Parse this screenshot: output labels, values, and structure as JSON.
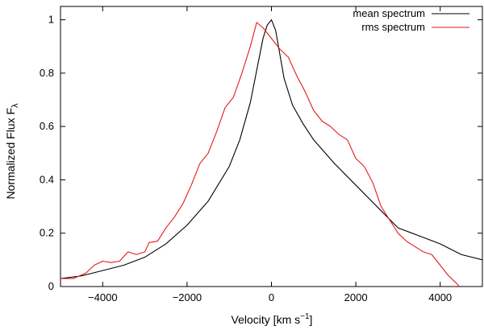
{
  "chart_data": {
    "type": "line",
    "xlabel": "Velocity [km s",
    "xlabel_sup": "−1",
    "xlabel_end": "]",
    "ylabel": "Normalized Flux F",
    "ylabel_sub": "λ",
    "xlim": [
      -5000,
      5000
    ],
    "ylim": [
      0,
      1.05
    ],
    "xticks": [
      {
        "value": -4000,
        "label": "−4000"
      },
      {
        "value": -2000,
        "label": "−2000"
      },
      {
        "value": 0,
        "label": "0"
      },
      {
        "value": 2000,
        "label": "2000"
      },
      {
        "value": 4000,
        "label": "4000"
      }
    ],
    "yticks": [
      {
        "value": 0,
        "label": "0"
      },
      {
        "value": 0.2,
        "label": "0.2"
      },
      {
        "value": 0.4,
        "label": "0.4"
      },
      {
        "value": 0.6,
        "label": "0.6"
      },
      {
        "value": 0.8,
        "label": "0.8"
      },
      {
        "value": 1,
        "label": "1"
      }
    ],
    "grid": false,
    "legend_position": "top-right",
    "series": [
      {
        "name": "mean spectrum",
        "color": "#000000",
        "points": [
          [
            -5000,
            0.03
          ],
          [
            -4500,
            0.04
          ],
          [
            -4000,
            0.06
          ],
          [
            -3500,
            0.08
          ],
          [
            -3000,
            0.11
          ],
          [
            -2500,
            0.16
          ],
          [
            -2000,
            0.23
          ],
          [
            -1500,
            0.32
          ],
          [
            -1000,
            0.45
          ],
          [
            -750,
            0.55
          ],
          [
            -500,
            0.69
          ],
          [
            -300,
            0.85
          ],
          [
            -200,
            0.93
          ],
          [
            -100,
            0.98
          ],
          [
            0,
            1.0
          ],
          [
            100,
            0.96
          ],
          [
            200,
            0.87
          ],
          [
            300,
            0.78
          ],
          [
            500,
            0.68
          ],
          [
            750,
            0.61
          ],
          [
            1000,
            0.55
          ],
          [
            1500,
            0.46
          ],
          [
            2000,
            0.38
          ],
          [
            2500,
            0.3
          ],
          [
            3000,
            0.22
          ],
          [
            3500,
            0.19
          ],
          [
            4000,
            0.16
          ],
          [
            4500,
            0.12
          ],
          [
            5000,
            0.1
          ]
        ]
      },
      {
        "name": "rms spectrum",
        "color": "#e31a1c",
        "points": [
          [
            -5000,
            0.03
          ],
          [
            -4700,
            0.03
          ],
          [
            -4400,
            0.05
          ],
          [
            -4200,
            0.08
          ],
          [
            -4000,
            0.095
          ],
          [
            -3800,
            0.09
          ],
          [
            -3600,
            0.095
          ],
          [
            -3400,
            0.13
          ],
          [
            -3200,
            0.12
          ],
          [
            -3000,
            0.13
          ],
          [
            -2900,
            0.165
          ],
          [
            -2700,
            0.17
          ],
          [
            -2500,
            0.22
          ],
          [
            -2300,
            0.26
          ],
          [
            -2100,
            0.31
          ],
          [
            -1900,
            0.38
          ],
          [
            -1700,
            0.46
          ],
          [
            -1500,
            0.5
          ],
          [
            -1300,
            0.58
          ],
          [
            -1100,
            0.67
          ],
          [
            -900,
            0.71
          ],
          [
            -700,
            0.8
          ],
          [
            -500,
            0.9
          ],
          [
            -350,
            0.99
          ],
          [
            -200,
            0.97
          ],
          [
            0,
            0.93
          ],
          [
            200,
            0.89
          ],
          [
            400,
            0.86
          ],
          [
            600,
            0.79
          ],
          [
            800,
            0.73
          ],
          [
            1000,
            0.66
          ],
          [
            1200,
            0.62
          ],
          [
            1400,
            0.6
          ],
          [
            1600,
            0.57
          ],
          [
            1800,
            0.55
          ],
          [
            2000,
            0.48
          ],
          [
            2200,
            0.45
          ],
          [
            2400,
            0.39
          ],
          [
            2600,
            0.3
          ],
          [
            2800,
            0.25
          ],
          [
            3000,
            0.2
          ],
          [
            3200,
            0.17
          ],
          [
            3400,
            0.15
          ],
          [
            3600,
            0.13
          ],
          [
            3800,
            0.12
          ],
          [
            4000,
            0.08
          ],
          [
            4200,
            0.04
          ],
          [
            4400,
            0.01
          ],
          [
            4500,
            -0.01
          ]
        ]
      }
    ]
  }
}
